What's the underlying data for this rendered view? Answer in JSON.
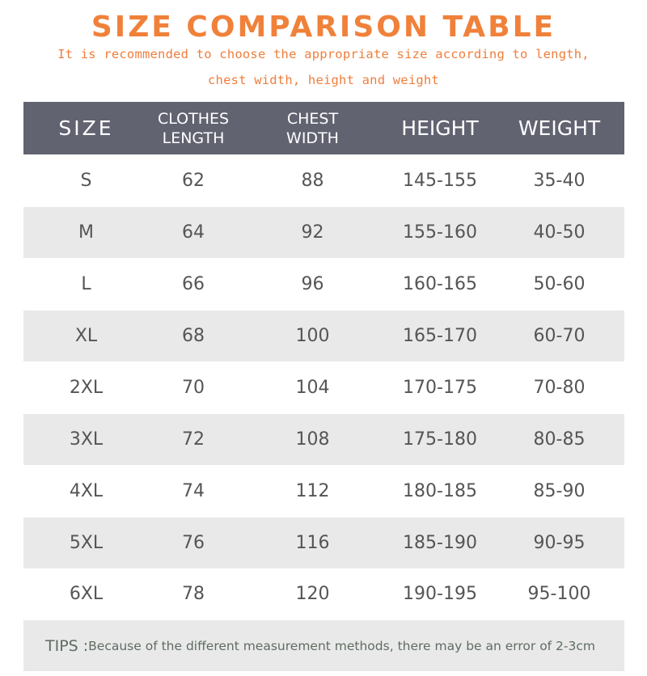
{
  "title": "SIZE COMPARISON TABLE",
  "subtitle_line1": "It is recommended to choose the appropriate size according to length,",
  "subtitle_line2": "chest width, height and weight",
  "header": {
    "size": "SIZE",
    "clothes_line1": "CLOTHES",
    "clothes_line2": "LENGTH",
    "chest_line1": "CHEST",
    "chest_line2": "WIDTH",
    "height": "HEIGHT",
    "weight": "WEIGHT"
  },
  "rows": [
    {
      "size": "S",
      "length": "62",
      "chest": "88",
      "height": "145-155",
      "weight": "35-40"
    },
    {
      "size": "M",
      "length": "64",
      "chest": "92",
      "height": "155-160",
      "weight": "40-50"
    },
    {
      "size": "L",
      "length": "66",
      "chest": "96",
      "height": "160-165",
      "weight": "50-60"
    },
    {
      "size": "XL",
      "length": "68",
      "chest": "100",
      "height": "165-170",
      "weight": "60-70"
    },
    {
      "size": "2XL",
      "length": "70",
      "chest": "104",
      "height": "170-175",
      "weight": "70-80"
    },
    {
      "size": "3XL",
      "length": "72",
      "chest": "108",
      "height": "175-180",
      "weight": "80-85"
    },
    {
      "size": "4XL",
      "length": "74",
      "chest": "112",
      "height": "180-185",
      "weight": "85-90"
    },
    {
      "size": "5XL",
      "length": "76",
      "chest": "116",
      "height": "185-190",
      "weight": "90-95"
    },
    {
      "size": "6XL",
      "length": "78",
      "chest": "120",
      "height": "190-195",
      "weight": "95-100"
    }
  ],
  "tips": {
    "label": "TIPS :",
    "text": "Because of the different measurement methods, there may be an error of 2-3cm"
  },
  "colors": {
    "accent": "#f0813a",
    "header_bg": "#626371",
    "stripe_bg": "#e9e9ea",
    "cell_text": "#555555",
    "tips_text": "#5f6c60"
  }
}
